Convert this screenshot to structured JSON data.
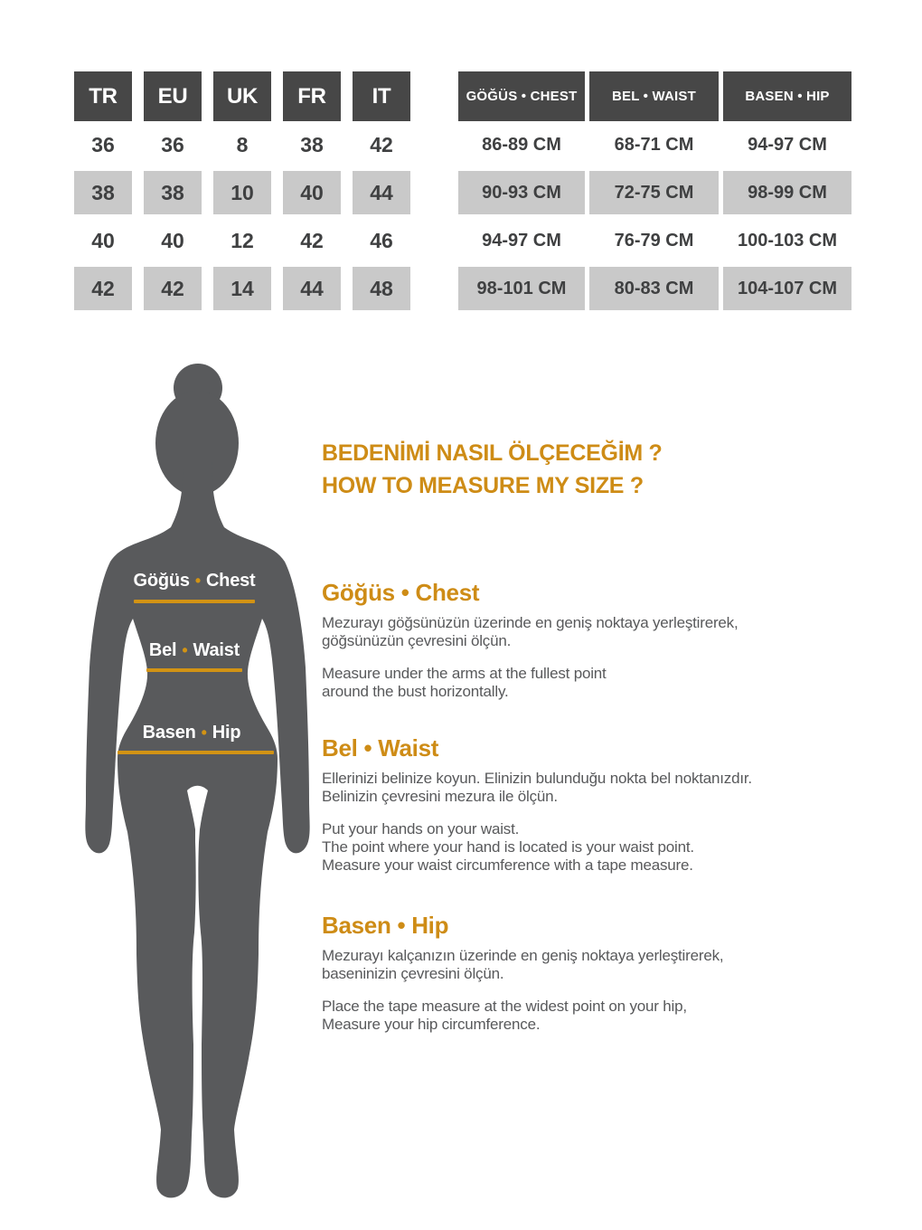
{
  "colors": {
    "header_dark": "#474747",
    "row_stripe_gray": "#C9C9C9",
    "silhouette_gray": "#595A5C",
    "accent_orange": "#D29314",
    "heading_orange": "#CE8C16",
    "cell_text": "#3F4041",
    "paragraph_text": "#58595B"
  },
  "size_table": {
    "headers": [
      "TR",
      "EU",
      "UK",
      "FR",
      "IT"
    ],
    "rows": [
      [
        "36",
        "36",
        "8",
        "38",
        "42"
      ],
      [
        "38",
        "38",
        "10",
        "40",
        "44"
      ],
      [
        "40",
        "40",
        "12",
        "42",
        "46"
      ],
      [
        "42",
        "42",
        "14",
        "44",
        "48"
      ]
    ]
  },
  "measure_table": {
    "headers": [
      "GÖĞÜS • CHEST",
      "BEL • WAIST",
      "BASEN • HIP"
    ],
    "rows": [
      [
        "86-89 CM",
        "68-71 CM",
        "94-97 CM"
      ],
      [
        "90-93 CM",
        "72-75 CM",
        "98-99 CM"
      ],
      [
        "94-97 CM",
        "76-79 CM",
        "100-103 CM"
      ],
      [
        "98-101 CM",
        "80-83 CM",
        "104-107 CM"
      ]
    ]
  },
  "figure_labels": {
    "bullet": "•",
    "chest_tr": "Göğüs",
    "chest_en": "Chest",
    "waist_tr": "Bel",
    "waist_en": "Waist",
    "hip_tr": "Basen",
    "hip_en": "Hip"
  },
  "guide": {
    "title_tr": "BEDENİMİ NASIL ÖLÇECEĞİM ?",
    "title_en": "HOW TO MEASURE MY SIZE ?",
    "sections": [
      {
        "heading": "Göğüs • Chest",
        "tr_lines": [
          "Mezurayı göğsünüzün üzerinde en geniş noktaya yerleştirerek,",
          "göğsünüzün çevresini ölçün."
        ],
        "en_lines": [
          "Measure under the arms at the fullest point",
          "around the bust horizontally."
        ]
      },
      {
        "heading": "Bel • Waist",
        "tr_lines": [
          "Ellerinizi belinize koyun. Elinizin bulunduğu nokta bel noktanızdır.",
          "Belinizin çevresini mezura ile ölçün."
        ],
        "en_lines": [
          "Put your hands on your waist.",
          "The point where your hand is located is your waist point.",
          "Measure your waist circumference with a tape measure."
        ]
      },
      {
        "heading": "Basen • Hip",
        "tr_lines": [
          "Mezurayı kalçanızın üzerinde en geniş noktaya yerleştirerek,",
          "baseninizin çevresini ölçün."
        ],
        "en_lines": [
          "Place the tape measure at the widest point on your hip,",
          "Measure your hip circumference."
        ]
      }
    ]
  }
}
